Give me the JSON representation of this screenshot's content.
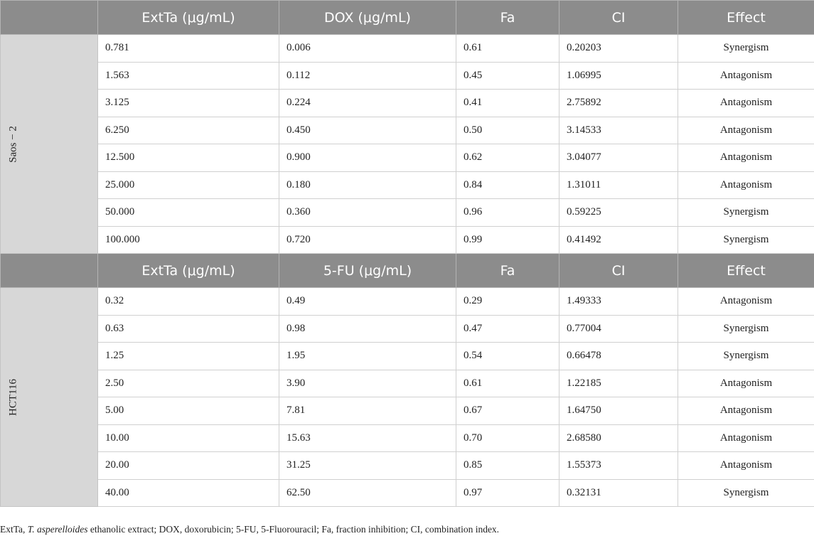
{
  "sections": [
    {
      "group": "Saos − 2",
      "headers": [
        "ExtTa (μg/mL)",
        "DOX (μg/mL)",
        "Fa",
        "CI",
        "Effect"
      ],
      "rows": [
        [
          "0.781",
          "0.006",
          "0.61",
          "0.20203",
          "Synergism"
        ],
        [
          "1.563",
          "0.112",
          "0.45",
          "1.06995",
          "Antagonism"
        ],
        [
          "3.125",
          "0.224",
          "0.41",
          "2.75892",
          "Antagonism"
        ],
        [
          "6.250",
          "0.450",
          "0.50",
          "3.14533",
          "Antagonism"
        ],
        [
          "12.500",
          "0.900",
          "0.62",
          "3.04077",
          "Antagonism"
        ],
        [
          "25.000",
          "0.180",
          "0.84",
          "1.31011",
          "Antagonism"
        ],
        [
          "50.000",
          "0.360",
          "0.96",
          "0.59225",
          "Synergism"
        ],
        [
          "100.000",
          "0.720",
          "0.99",
          "0.41492",
          "Synergism"
        ]
      ]
    },
    {
      "group": "HCT116",
      "headers": [
        "ExtTa (μg/mL)",
        "5-FU (μg/mL)",
        "Fa",
        "CI",
        "Effect"
      ],
      "rows": [
        [
          "0.32",
          "0.49",
          "0.29",
          "1.49333",
          "Antagonism"
        ],
        [
          "0.63",
          "0.98",
          "0.47",
          "0.77004",
          "Synergism"
        ],
        [
          "1.25",
          "1.95",
          "0.54",
          "0.66478",
          "Synergism"
        ],
        [
          "2.50",
          "3.90",
          "0.61",
          "1.22185",
          "Antagonism"
        ],
        [
          "5.00",
          "7.81",
          "0.67",
          "1.64750",
          "Antagonism"
        ],
        [
          "10.00",
          "15.63",
          "0.70",
          "2.68580",
          "Antagonism"
        ],
        [
          "20.00",
          "31.25",
          "0.85",
          "1.55373",
          "Antagonism"
        ],
        [
          "40.00",
          "62.50",
          "0.97",
          "0.32131",
          "Synergism"
        ]
      ]
    }
  ],
  "footnote": {
    "prefix": "ExtTa, ",
    "italic": "T. asperelloides",
    "suffix": " ethanolic extract; DOX, doxorubicin; 5-FU, 5-Fluorouracil; Fa, fraction inhibition; CI, combination index."
  },
  "colors": {
    "header_bg": "#8c8c8c",
    "header_text": "#ffffff",
    "group_bg": "#d7d7d7"
  }
}
